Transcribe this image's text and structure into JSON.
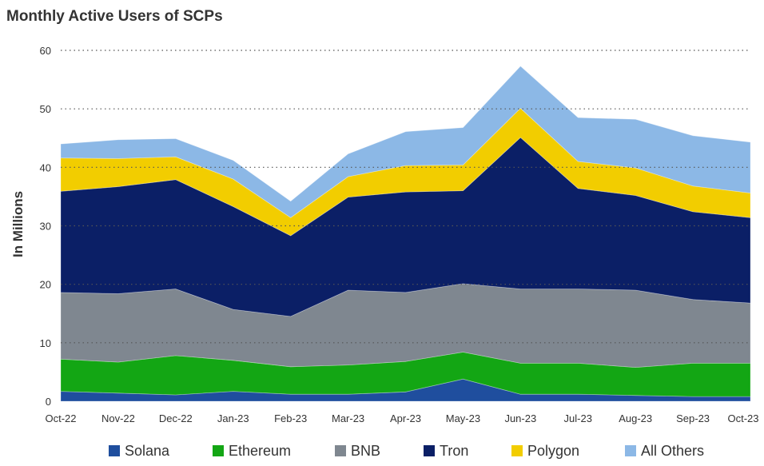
{
  "chart_data": {
    "type": "area",
    "stacked": true,
    "title": "Monthly Active Users of SCPs",
    "xlabel": "",
    "ylabel": "In Millions",
    "ylim": [
      0,
      60
    ],
    "yticks": [
      0,
      10,
      20,
      30,
      40,
      50,
      60
    ],
    "grid": "horizontal dotted",
    "legend_position": "bottom",
    "categories": [
      "Oct-22",
      "Nov-22",
      "Dec-22",
      "Jan-23",
      "Feb-23",
      "Mar-23",
      "Apr-23",
      "May-23",
      "Jun-23",
      "Jul-23",
      "Aug-23",
      "Sep-23",
      "Oct-23"
    ],
    "series": [
      {
        "name": "Solana",
        "color": "#1f4e9e",
        "values": [
          1.7,
          1.4,
          1.1,
          1.7,
          1.2,
          1.2,
          1.6,
          3.8,
          1.2,
          1.2,
          1.0,
          0.8,
          0.8
        ]
      },
      {
        "name": "Ethereum",
        "color": "#13a614",
        "values": [
          5.5,
          5.3,
          6.7,
          5.3,
          4.7,
          5.0,
          5.2,
          4.6,
          5.3,
          5.3,
          4.8,
          5.7,
          5.7
        ]
      },
      {
        "name": "BNB",
        "color": "#7f8790",
        "values": [
          11.4,
          11.7,
          11.4,
          8.7,
          8.6,
          12.8,
          11.8,
          11.7,
          12.7,
          12.7,
          13.2,
          10.9,
          10.3
        ]
      },
      {
        "name": "Tron",
        "color": "#0b1f66",
        "values": [
          17.3,
          18.3,
          18.7,
          17.6,
          13.8,
          15.9,
          17.2,
          15.9,
          25.9,
          17.2,
          16.2,
          15.0,
          14.6
        ]
      },
      {
        "name": "Polygon",
        "color": "#f2cd00",
        "values": [
          5.7,
          4.8,
          3.9,
          4.7,
          3.1,
          3.5,
          4.5,
          4.4,
          5.0,
          4.6,
          4.7,
          4.4,
          4.2
        ]
      },
      {
        "name": "All Others",
        "color": "#8cb8e6",
        "values": [
          2.4,
          3.2,
          3.1,
          3.2,
          2.8,
          3.9,
          5.8,
          6.4,
          7.2,
          7.5,
          8.3,
          8.6,
          8.7
        ]
      }
    ]
  }
}
